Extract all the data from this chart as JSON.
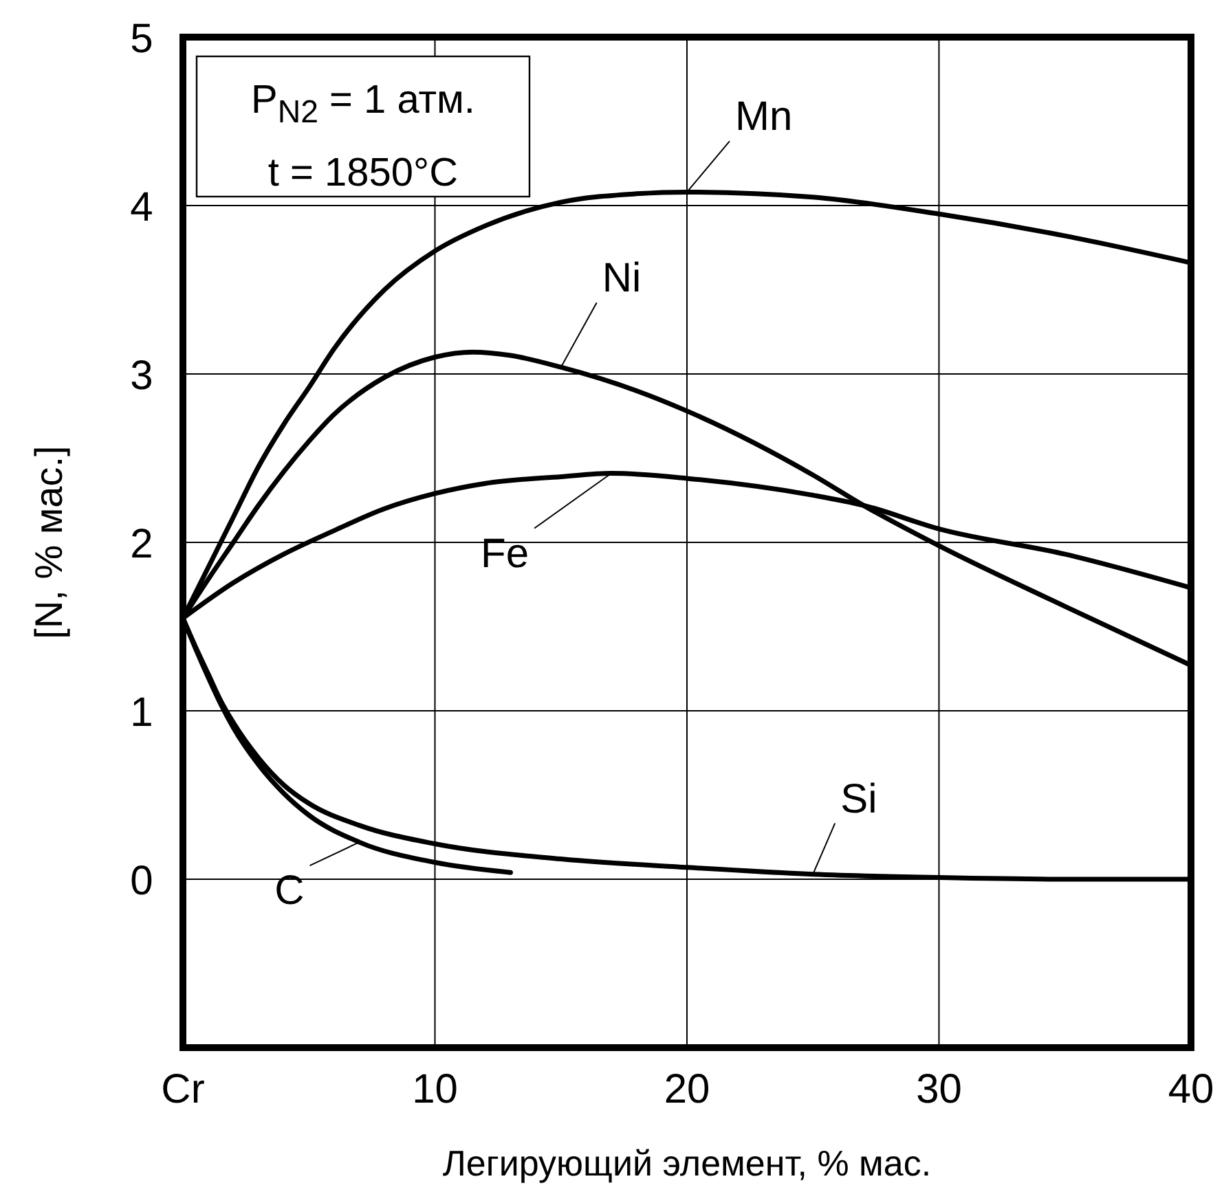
{
  "chart_data": {
    "type": "line",
    "xlabel": "Легирующий элемент, % мас.",
    "ylabel": "[N, % мас.]",
    "annotations": [
      "P$_{N2}$ = 1 атм.",
      "t = 1850°C"
    ],
    "xlim": [
      0,
      40
    ],
    "ylim": [
      -1,
      5
    ],
    "xticks": [
      {
        "value": 0,
        "label": "Cr"
      },
      10,
      20,
      30,
      40
    ],
    "yticks": [
      0,
      1,
      2,
      3,
      4,
      5
    ],
    "grid": true,
    "marker": "none",
    "line_style": "solid",
    "series": [
      {
        "name": "Mn",
        "color": "#000000",
        "x": [
          0,
          1,
          2,
          3,
          4,
          5,
          6,
          8,
          10,
          12,
          15,
          18,
          20,
          25,
          30,
          35,
          40
        ],
        "values": [
          1.55,
          1.85,
          2.15,
          2.45,
          2.7,
          2.92,
          3.15,
          3.5,
          3.73,
          3.88,
          4.02,
          4.07,
          4.08,
          4.05,
          3.95,
          3.82,
          3.66
        ]
      },
      {
        "name": "Ni",
        "color": "#000000",
        "x": [
          0,
          1,
          2,
          3,
          4,
          5,
          6,
          8,
          10,
          11.5,
          13,
          15,
          18,
          20,
          25,
          27,
          30,
          35,
          40
        ],
        "values": [
          1.55,
          1.78,
          2.0,
          2.22,
          2.42,
          2.6,
          2.76,
          2.98,
          3.1,
          3.13,
          3.11,
          3.04,
          2.9,
          2.78,
          2.4,
          2.22,
          1.98,
          1.62,
          1.27
        ]
      },
      {
        "name": "Fe",
        "color": "#000000",
        "x": [
          0,
          2,
          4,
          6,
          8,
          10,
          12,
          15,
          17,
          20,
          25,
          27,
          30,
          35,
          40
        ],
        "values": [
          1.55,
          1.76,
          1.93,
          2.07,
          2.2,
          2.29,
          2.35,
          2.39,
          2.41,
          2.38,
          2.28,
          2.22,
          2.08,
          1.93,
          1.73
        ]
      },
      {
        "name": "Si",
        "color": "#000000",
        "x": [
          0,
          0.5,
          1,
          1.5,
          2,
          3,
          4,
          5,
          7,
          10,
          15,
          20,
          25,
          30,
          35,
          40
        ],
        "values": [
          1.55,
          1.38,
          1.22,
          1.06,
          0.93,
          0.72,
          0.56,
          0.45,
          0.32,
          0.21,
          0.12,
          0.07,
          0.03,
          0.01,
          0,
          0
        ]
      },
      {
        "name": "C",
        "color": "#000000",
        "x": [
          0,
          0.5,
          1,
          1.5,
          2,
          3,
          4,
          5,
          7,
          10,
          13
        ],
        "values": [
          1.55,
          1.37,
          1.2,
          1.04,
          0.9,
          0.68,
          0.51,
          0.38,
          0.22,
          0.1,
          0.04
        ]
      }
    ]
  }
}
